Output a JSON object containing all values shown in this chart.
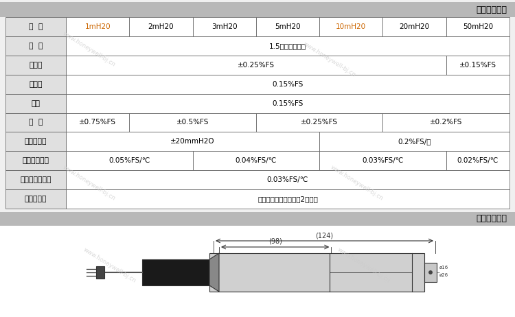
{
  "title1": "主要性能规范",
  "title2": "主要外形尺寸",
  "watermark": "www.honeywell-bj.cn",
  "orange_color": "#cc6600",
  "rows": [
    {
      "label": "量  程",
      "cells": [
        "1mH20",
        "2mH20",
        "3mH20",
        "5mH20",
        "10mH20",
        "20mH20",
        "50mH20"
      ],
      "spans": [
        1,
        1,
        1,
        1,
        1,
        1,
        1
      ],
      "cell_colors": [
        "orange",
        "black",
        "black",
        "black",
        "orange",
        "black",
        "black"
      ]
    },
    {
      "label": "过  压",
      "cells": [
        "1.5倍满量程压力"
      ],
      "spans": [
        7
      ],
      "cell_colors": [
        "black"
      ]
    },
    {
      "label": "非线性",
      "cells": [
        "±0.25%FS",
        "±0.15%FS"
      ],
      "spans": [
        6,
        1
      ],
      "cell_colors": [
        "black",
        "black"
      ]
    },
    {
      "label": "重复性",
      "cells": [
        "0.15%FS"
      ],
      "spans": [
        7
      ],
      "cell_colors": [
        "black"
      ]
    },
    {
      "label": "迟滞",
      "cells": [
        "0.15%FS"
      ],
      "spans": [
        7
      ],
      "cell_colors": [
        "black"
      ]
    },
    {
      "label": "精  度",
      "cells": [
        "±0.75%FS",
        "±0.5%FS",
        "±0.25%FS",
        "±0.2%FS"
      ],
      "spans": [
        1,
        2,
        2,
        2
      ],
      "cell_colors": [
        "black",
        "black",
        "black",
        "black"
      ]
    },
    {
      "label": "长期稳定性",
      "cells": [
        "±20mmH2O",
        "0.2%FS/年"
      ],
      "spans": [
        4,
        3
      ],
      "cell_colors": [
        "black",
        "black"
      ]
    },
    {
      "label": "零点温度误差",
      "cells": [
        "0.05%FS/℃",
        "0.04%FS/℃",
        "0.03%FS/℃",
        "0.02%FS/℃"
      ],
      "spans": [
        2,
        2,
        2,
        1
      ],
      "cell_colors": [
        "black",
        "black",
        "black",
        "black"
      ]
    },
    {
      "label": "灵敏度温度误差",
      "cells": [
        "0.03%FS/℃"
      ],
      "spans": [
        7
      ],
      "cell_colors": [
        "black"
      ]
    },
    {
      "label": "电缆线长度",
      "cells": [
        "默认在量程基础上增加2米电缆"
      ],
      "spans": [
        7
      ],
      "cell_colors": [
        "black"
      ]
    }
  ]
}
